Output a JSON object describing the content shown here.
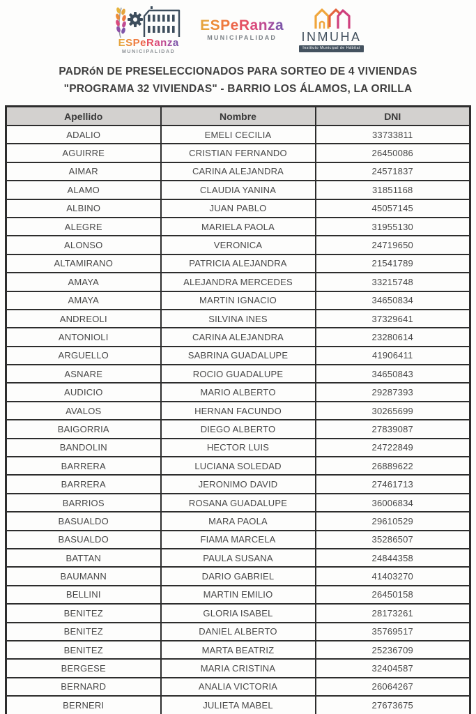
{
  "logos": {
    "esperanza_letters": [
      {
        "c": "E",
        "color": "#e6a43c"
      },
      {
        "c": "S",
        "color": "#ec8b37"
      },
      {
        "c": "P",
        "color": "#ee7a3e"
      },
      {
        "c": "e",
        "color": "#ec6449"
      },
      {
        "c": "R",
        "color": "#e45163"
      },
      {
        "c": "a",
        "color": "#d9497c"
      },
      {
        "c": "n",
        "color": "#c04b91"
      },
      {
        "c": "z",
        "color": "#a04fa0"
      },
      {
        "c": "a",
        "color": "#7f55a8"
      }
    ],
    "municipalidad": "MUNICIPALIDAD",
    "inmuha_name": "INMUHA",
    "inmuha_badge": "Instituto Municipal de Hábitat"
  },
  "title": {
    "line1": "PADRóN DE PRESELECCIONADOS PARA SORTEO DE 4 VIVIENDAS",
    "line2": "\"PROGRAMA 32 VIVIENDAS\" - BARRIO LOS ÁLAMOS, LA ORILLA"
  },
  "table": {
    "columns": [
      "Apellido",
      "Nombre",
      "DNI"
    ],
    "rows": [
      [
        "ADALIO",
        "EMELI CECILIA",
        "33733811"
      ],
      [
        "AGUIRRE",
        "CRISTIAN FERNANDO",
        "26450086"
      ],
      [
        "AIMAR",
        "CARINA ALEJANDRA",
        "24571837"
      ],
      [
        "ALAMO",
        "CLAUDIA YANINA",
        "31851168"
      ],
      [
        "ALBINO",
        "JUAN PABLO",
        "45057145"
      ],
      [
        "ALEGRE",
        "MARIELA PAOLA",
        "31955130"
      ],
      [
        "ALONSO",
        "VERONICA",
        "24719650"
      ],
      [
        "ALTAMIRANO",
        "PATRICIA ALEJANDRA",
        "21541789"
      ],
      [
        "AMAYA",
        "ALEJANDRA MERCEDES",
        "33215748"
      ],
      [
        "AMAYA",
        "MARTIN IGNACIO",
        "34650834"
      ],
      [
        "ANDREOLI",
        "SILVINA INES",
        "37329641"
      ],
      [
        "ANTONIOLI",
        "CARINA ALEJANDRA",
        "23280614"
      ],
      [
        "ARGUELLO",
        "SABRINA GUADALUPE",
        "41906411"
      ],
      [
        "ASNARE",
        "ROCIO GUADALUPE",
        "34650843"
      ],
      [
        "AUDICIO",
        "MARIO ALBERTO",
        "29287393"
      ],
      [
        "AVALOS",
        "HERNAN FACUNDO",
        "30265699"
      ],
      [
        "BAIGORRIA",
        "DIEGO ALBERTO",
        "27839087"
      ],
      [
        "BANDOLIN",
        "HECTOR LUIS",
        "24722849"
      ],
      [
        "BARRERA",
        "LUCIANA SOLEDAD",
        "26889622"
      ],
      [
        "BARRERA",
        "JERONIMO DAVID",
        "27461713"
      ],
      [
        "BARRIOS",
        "ROSANA GUADALUPE",
        "36006834"
      ],
      [
        "BASUALDO",
        "MARA PAOLA",
        "29610529"
      ],
      [
        "BASUALDO",
        "FIAMA MARCELA",
        "35286507"
      ],
      [
        "BATTAN",
        "PAULA SUSANA",
        "24844358"
      ],
      [
        "BAUMANN",
        "DARIO GABRIEL",
        "41403270"
      ],
      [
        "BELLINI",
        "MARTIN EMILIO",
        "26450158"
      ],
      [
        "BENITEZ",
        "GLORIA ISABEL",
        "28173261"
      ],
      [
        "BENITEZ",
        "DANIEL ALBERTO",
        "35769517"
      ],
      [
        "BENITEZ",
        "MARTA BEATRIZ",
        "25236709"
      ],
      [
        "BERGESE",
        "MARIA CRISTINA",
        "32404587"
      ],
      [
        "BERNARD",
        "ANALIA VICTORIA",
        "26064267"
      ],
      [
        "BERNERI",
        "JULIETA MABEL",
        "27673675"
      ]
    ]
  },
  "colors": {
    "table_border": "#2d2d2d",
    "header_bg": "#d3d1cf",
    "text": "#474747",
    "inmuha_navy": "#44525f",
    "logo_yellow": "#e6a43c",
    "logo_orange": "#ec8b37",
    "logo_pink": "#d9497c",
    "logo_purple": "#7f55a8"
  }
}
